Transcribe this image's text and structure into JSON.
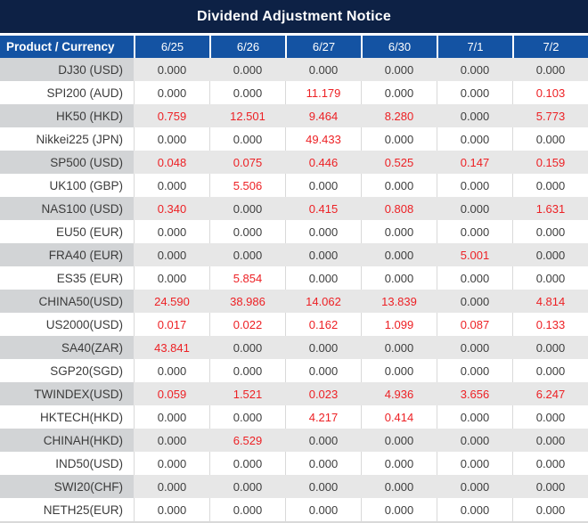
{
  "title": "Dividend Adjustment Notice",
  "table": {
    "header": {
      "product_label": "Product / Currency",
      "dates": [
        "6/25",
        "6/26",
        "6/27",
        "6/30",
        "7/1",
        "7/2"
      ]
    },
    "rows": [
      {
        "product": "DJ30 (USD)",
        "values": [
          "0.000",
          "0.000",
          "0.000",
          "0.000",
          "0.000",
          "0.000"
        ]
      },
      {
        "product": "SPI200 (AUD)",
        "values": [
          "0.000",
          "0.000",
          "11.179",
          "0.000",
          "0.000",
          "0.103"
        ]
      },
      {
        "product": "HK50 (HKD)",
        "values": [
          "0.759",
          "12.501",
          "9.464",
          "8.280",
          "0.000",
          "5.773"
        ]
      },
      {
        "product": "Nikkei225 (JPN)",
        "values": [
          "0.000",
          "0.000",
          "49.433",
          "0.000",
          "0.000",
          "0.000"
        ]
      },
      {
        "product": "SP500 (USD)",
        "values": [
          "0.048",
          "0.075",
          "0.446",
          "0.525",
          "0.147",
          "0.159"
        ]
      },
      {
        "product": "UK100 (GBP)",
        "values": [
          "0.000",
          "5.506",
          "0.000",
          "0.000",
          "0.000",
          "0.000"
        ]
      },
      {
        "product": "NAS100 (USD)",
        "values": [
          "0.340",
          "0.000",
          "0.415",
          "0.808",
          "0.000",
          "1.631"
        ]
      },
      {
        "product": "EU50 (EUR)",
        "values": [
          "0.000",
          "0.000",
          "0.000",
          "0.000",
          "0.000",
          "0.000"
        ]
      },
      {
        "product": "FRA40 (EUR)",
        "values": [
          "0.000",
          "0.000",
          "0.000",
          "0.000",
          "5.001",
          "0.000"
        ]
      },
      {
        "product": "ES35 (EUR)",
        "values": [
          "0.000",
          "5.854",
          "0.000",
          "0.000",
          "0.000",
          "0.000"
        ]
      },
      {
        "product": "CHINA50(USD)",
        "values": [
          "24.590",
          "38.986",
          "14.062",
          "13.839",
          "0.000",
          "4.814"
        ]
      },
      {
        "product": "US2000(USD)",
        "values": [
          "0.017",
          "0.022",
          "0.162",
          "1.099",
          "0.087",
          "0.133"
        ]
      },
      {
        "product": "SA40(ZAR)",
        "values": [
          "43.841",
          "0.000",
          "0.000",
          "0.000",
          "0.000",
          "0.000"
        ]
      },
      {
        "product": "SGP20(SGD)",
        "values": [
          "0.000",
          "0.000",
          "0.000",
          "0.000",
          "0.000",
          "0.000"
        ]
      },
      {
        "product": "TWINDEX(USD)",
        "values": [
          "0.059",
          "1.521",
          "0.023",
          "4.936",
          "3.656",
          "6.247"
        ]
      },
      {
        "product": "HKTECH(HKD)",
        "values": [
          "0.000",
          "0.000",
          "4.217",
          "0.414",
          "0.000",
          "0.000"
        ]
      },
      {
        "product": "CHINAH(HKD)",
        "values": [
          "0.000",
          "6.529",
          "0.000",
          "0.000",
          "0.000",
          "0.000"
        ]
      },
      {
        "product": "IND50(USD)",
        "values": [
          "0.000",
          "0.000",
          "0.000",
          "0.000",
          "0.000",
          "0.000"
        ]
      },
      {
        "product": "SWI20(CHF)",
        "values": [
          "0.000",
          "0.000",
          "0.000",
          "0.000",
          "0.000",
          "0.000"
        ]
      },
      {
        "product": "NETH25(EUR)",
        "values": [
          "0.000",
          "0.000",
          "0.000",
          "0.000",
          "0.000",
          "0.000"
        ]
      }
    ]
  },
  "colors": {
    "title_bg": "#0d2145",
    "header_bg": "#1453a3",
    "header_text": "#ffffff",
    "label_gray": "#d2d4d6",
    "cell_gray": "#e7e7e7",
    "label_color": "#3b3b3b",
    "zero_value_color": "#3e3e3e",
    "nonzero_value_color": "#ed2125"
  }
}
